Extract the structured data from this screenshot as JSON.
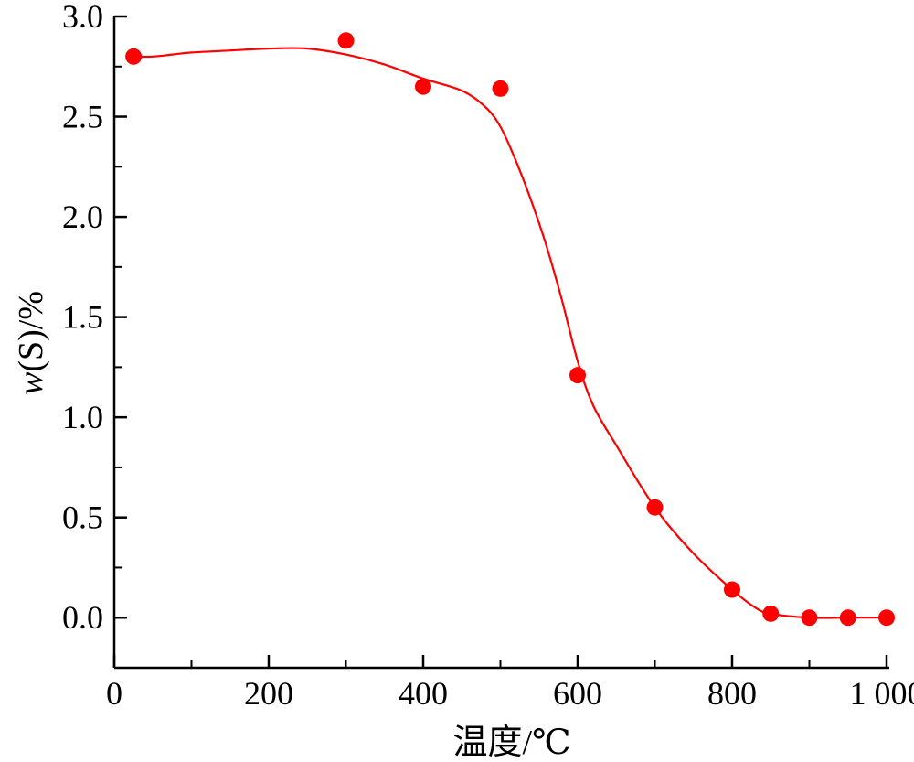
{
  "chart_data": {
    "type": "scatter",
    "title": "",
    "xlabel": "温度/℃",
    "ylabel_italic": "w",
    "ylabel_rest": "(S)/%",
    "xlim": [
      0,
      1000
    ],
    "ylim": [
      -0.25,
      3.0
    ],
    "x_ticks": [
      {
        "value": 0,
        "label": "0"
      },
      {
        "value": 200,
        "label": "200"
      },
      {
        "value": 400,
        "label": "400"
      },
      {
        "value": 600,
        "label": "600"
      },
      {
        "value": 800,
        "label": "800"
      },
      {
        "value": 1000,
        "label": "1 000"
      }
    ],
    "y_ticks": [
      {
        "value": 0.0,
        "label": "0.0"
      },
      {
        "value": 0.5,
        "label": "0.5"
      },
      {
        "value": 1.0,
        "label": "1.0"
      },
      {
        "value": 1.5,
        "label": "1.5"
      },
      {
        "value": 2.0,
        "label": "2.0"
      },
      {
        "value": 2.5,
        "label": "2.5"
      },
      {
        "value": 3.0,
        "label": "3.0"
      }
    ],
    "grid": false,
    "color": "#ff0000",
    "points": [
      {
        "x": 25,
        "y": 2.8
      },
      {
        "x": 300,
        "y": 2.88
      },
      {
        "x": 400,
        "y": 2.65
      },
      {
        "x": 500,
        "y": 2.64
      },
      {
        "x": 600,
        "y": 1.21
      },
      {
        "x": 700,
        "y": 0.55
      },
      {
        "x": 800,
        "y": 0.14
      },
      {
        "x": 850,
        "y": 0.02
      },
      {
        "x": 900,
        "y": 0.0
      },
      {
        "x": 950,
        "y": 0.0
      },
      {
        "x": 1000,
        "y": 0.0
      }
    ],
    "fit_curve": [
      {
        "x": 25,
        "y": 2.8
      },
      {
        "x": 50,
        "y": 2.8
      },
      {
        "x": 75,
        "y": 2.81
      },
      {
        "x": 100,
        "y": 2.82
      },
      {
        "x": 150,
        "y": 2.83
      },
      {
        "x": 200,
        "y": 2.84
      },
      {
        "x": 250,
        "y": 2.84
      },
      {
        "x": 300,
        "y": 2.81
      },
      {
        "x": 350,
        "y": 2.76
      },
      {
        "x": 400,
        "y": 2.69
      },
      {
        "x": 450,
        "y": 2.63
      },
      {
        "x": 480,
        "y": 2.55
      },
      {
        "x": 500,
        "y": 2.45
      },
      {
        "x": 520,
        "y": 2.28
      },
      {
        "x": 540,
        "y": 2.08
      },
      {
        "x": 560,
        "y": 1.85
      },
      {
        "x": 580,
        "y": 1.58
      },
      {
        "x": 600,
        "y": 1.28
      },
      {
        "x": 620,
        "y": 1.06
      },
      {
        "x": 650,
        "y": 0.86
      },
      {
        "x": 700,
        "y": 0.55
      },
      {
        "x": 750,
        "y": 0.32
      },
      {
        "x": 800,
        "y": 0.14
      },
      {
        "x": 830,
        "y": 0.05
      },
      {
        "x": 850,
        "y": 0.02
      },
      {
        "x": 900,
        "y": 0.0
      },
      {
        "x": 950,
        "y": 0.0
      },
      {
        "x": 1000,
        "y": 0.0
      }
    ]
  }
}
